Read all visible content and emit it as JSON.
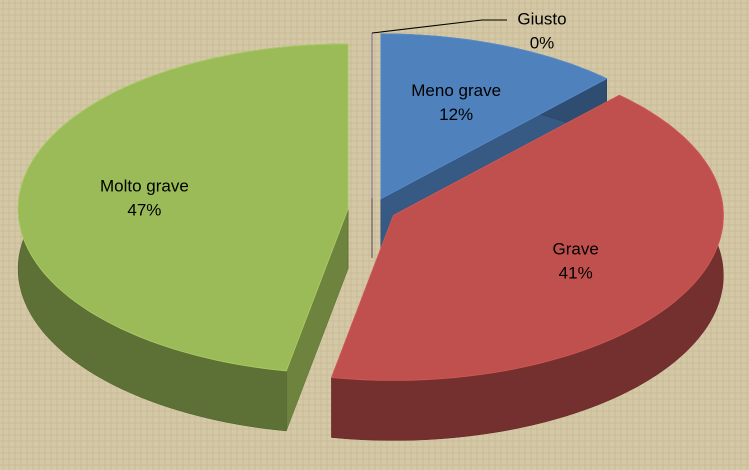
{
  "chart_data": {
    "type": "pie",
    "categories": [
      "Giusto",
      "Meno grave",
      "Grave",
      "Molto grave"
    ],
    "values": [
      0,
      12,
      41,
      47
    ],
    "value_labels": [
      "0%",
      "12%",
      "41%",
      "47%"
    ],
    "colors": [
      "#8064a2",
      "#4f81bd",
      "#c0504d",
      "#9bbb59"
    ]
  }
}
